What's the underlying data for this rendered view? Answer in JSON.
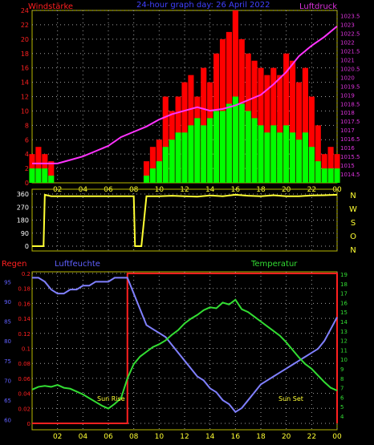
{
  "colors": {
    "background": "#000000",
    "frame": "#b8b800",
    "grid": "#a0a0a0",
    "wind_gust": "#ff0000",
    "wind_avg": "#00ff00",
    "pressure": "#ff33ff",
    "direction": "#ffff33",
    "humidity": "#8080ff",
    "temperature": "#33dd33",
    "rain": "#ff2020",
    "red_label": "#ff2020",
    "blue_label": "#6060ff",
    "green_label": "#33dd33",
    "magenta_label": "#dd33dd",
    "yellow_label": "#ffff33"
  },
  "chart_data": [
    {
      "id": "wind_pressure",
      "type": "bar",
      "title": "24-hour graph day: 26 April 2022",
      "ylabel_left": "Windstärke",
      "ylabel_right": "Luftdruck",
      "x_ticks": [
        "02",
        "04",
        "06",
        "08",
        "10",
        "12",
        "14",
        "16",
        "18",
        "20",
        "22",
        "00"
      ],
      "y_left_ticks": [
        "0",
        "2",
        "4",
        "6",
        "8",
        "10",
        "12",
        "14",
        "16",
        "18",
        "20",
        "22",
        "24"
      ],
      "y_left_range": [
        0,
        24
      ],
      "y_right_ticks": [
        "1014.5",
        "1015",
        "1015.5",
        "1016",
        "1016.5",
        "1017",
        "1017.5",
        "1018",
        "1018.5",
        "1019",
        "1019.5",
        "1020",
        "1020.5",
        "1021",
        "1021.5",
        "1022",
        "1022.5",
        "1023",
        "1023.5"
      ],
      "y_right_range": [
        1014,
        1023.8
      ],
      "x_range_hours": [
        0,
        24
      ],
      "grid": true,
      "series": [
        {
          "name": "gust",
          "x": [
            0,
            0.5,
            1,
            1.5,
            2,
            2.5,
            3,
            3.5,
            4,
            4.5,
            5,
            5.5,
            6,
            6.5,
            7,
            7.5,
            8,
            8.5,
            9,
            9.5,
            10,
            10.5,
            11,
            11.5,
            12,
            12.5,
            13,
            13.5,
            14,
            14.5,
            15,
            15.5,
            16,
            16.5,
            17,
            17.5,
            18,
            18.5,
            19,
            19.5,
            20,
            20.5,
            21,
            21.5,
            22,
            22.5,
            23,
            23.5,
            24
          ],
          "values": [
            4,
            5,
            4,
            3,
            0,
            0,
            0,
            0,
            0,
            0,
            0,
            0,
            0,
            0,
            0,
            0,
            0,
            0,
            3,
            5,
            6,
            12,
            10,
            12,
            14,
            15,
            12,
            16,
            14,
            18,
            20,
            21,
            24,
            20,
            18,
            17,
            16,
            15,
            16,
            15,
            18,
            17,
            14,
            16,
            12,
            8,
            4,
            5,
            4
          ]
        },
        {
          "name": "average",
          "x": [
            0,
            0.5,
            1,
            1.5,
            2,
            2.5,
            3,
            3.5,
            4,
            4.5,
            5,
            5.5,
            6,
            6.5,
            7,
            7.5,
            8,
            8.5,
            9,
            9.5,
            10,
            10.5,
            11,
            11.5,
            12,
            12.5,
            13,
            13.5,
            14,
            14.5,
            15,
            15.5,
            16,
            16.5,
            17,
            17.5,
            18,
            18.5,
            19,
            19.5,
            20,
            20.5,
            21,
            21.5,
            22,
            22.5,
            23,
            23.5,
            24
          ],
          "values": [
            2,
            2,
            2,
            1,
            0,
            0,
            0,
            0,
            0,
            0,
            0,
            0,
            0,
            0,
            0,
            0,
            0,
            0,
            1,
            2,
            3,
            5,
            6,
            7,
            7,
            8,
            9,
            8,
            9,
            10,
            10,
            11,
            12,
            11,
            10,
            9,
            8,
            7,
            8,
            7,
            8,
            7,
            6,
            7,
            5,
            3,
            2,
            2,
            2
          ]
        },
        {
          "name": "pressure",
          "x": [
            0,
            1,
            2,
            3,
            4,
            5,
            6,
            7,
            8,
            9,
            10,
            11,
            12,
            13,
            14,
            15,
            16,
            17,
            18,
            19,
            20,
            21,
            22,
            23,
            24
          ],
          "values": [
            1015.1,
            1015.1,
            1015.1,
            1015.3,
            1015.5,
            1015.8,
            1016.1,
            1016.6,
            1016.9,
            1017.2,
            1017.6,
            1017.9,
            1018.1,
            1018.3,
            1018.1,
            1018.2,
            1018.4,
            1018.7,
            1019.0,
            1019.6,
            1020.3,
            1021.2,
            1021.8,
            1022.3,
            1022.9
          ]
        }
      ]
    },
    {
      "id": "wind_direction",
      "type": "line",
      "y_ticks": [
        "0",
        "90",
        "180",
        "270",
        "360"
      ],
      "y_range": [
        0,
        360
      ],
      "compass_labels": [
        "N",
        "W",
        "S",
        "O",
        "N"
      ],
      "x_range_hours": [
        0,
        24
      ],
      "series": [
        {
          "name": "direction",
          "x": [
            0,
            0.3,
            0.6,
            0.9,
            1.0,
            1.5,
            2,
            3,
            4,
            5,
            6,
            7,
            7.5,
            8.0,
            8.1,
            8.5,
            8.6,
            9.0,
            10,
            11,
            12,
            13,
            14,
            15,
            16,
            17,
            18,
            19,
            20,
            21,
            22,
            23,
            24
          ],
          "values": [
            0,
            0,
            0,
            0,
            355,
            345,
            345,
            345,
            345,
            345,
            345,
            345,
            345,
            345,
            0,
            0,
            0,
            345,
            345,
            348,
            345,
            342,
            350,
            345,
            355,
            348,
            345,
            352,
            345,
            345,
            350,
            352,
            355
          ]
        }
      ]
    },
    {
      "id": "humidity_temperature",
      "type": "line",
      "label_rain": "Regen",
      "label_humidity": "Luftfeuchte",
      "label_temperature": "Temperatur",
      "annotations": [
        "Sun Rise",
        "Sun Set"
      ],
      "x_ticks": [
        "02",
        "04",
        "06",
        "08",
        "10",
        "12",
        "14",
        "16",
        "18",
        "20",
        "22",
        "00"
      ],
      "rain_ticks": [
        "0",
        "0.02",
        "0.04",
        "0.06",
        "0.08",
        "0.1",
        "0.12",
        "0.14",
        "0.16",
        "0.18",
        "0.2"
      ],
      "rain_range": [
        0,
        0.2
      ],
      "humidity_ticks": [
        "60",
        "65",
        "70",
        "75",
        "80",
        "85",
        "90",
        "95"
      ],
      "humidity_range": [
        57.5,
        97.5
      ],
      "temperature_ticks": [
        "4",
        "5",
        "6",
        "7",
        "8",
        "9",
        "10",
        "11",
        "12",
        "13",
        "14",
        "15",
        "16",
        "17",
        "18",
        "19"
      ],
      "temperature_range": [
        4,
        19
      ],
      "x_range_hours": [
        0,
        24
      ],
      "grid": true,
      "series": [
        {
          "name": "humidity",
          "x": [
            0,
            0.5,
            1,
            1.5,
            2,
            2.5,
            3,
            3.5,
            4,
            4.5,
            5,
            5.5,
            6,
            6.5,
            7,
            7.5,
            8,
            8.5,
            9,
            9.5,
            10,
            10.5,
            11,
            11.5,
            12,
            12.5,
            13,
            13.5,
            14,
            14.5,
            15,
            15.5,
            16,
            16.5,
            17,
            17.5,
            18,
            18.5,
            19,
            19.5,
            20,
            20.5,
            21,
            21.5,
            22,
            22.5,
            23,
            23.5,
            24
          ],
          "values": [
            96,
            96,
            95,
            93,
            92,
            92,
            93,
            93,
            94,
            94,
            95,
            95,
            95,
            96,
            96,
            96,
            92,
            88,
            84,
            83,
            82,
            81,
            79,
            77,
            75,
            73,
            71,
            70,
            68,
            67,
            65,
            64,
            62,
            63,
            65,
            67,
            69,
            70,
            71,
            72,
            73,
            74,
            75,
            76,
            77,
            78,
            80,
            83,
            86
          ]
        },
        {
          "name": "temperature",
          "x": [
            0,
            0.5,
            1,
            1.5,
            2,
            2.5,
            3,
            3.5,
            4,
            4.5,
            5,
            5.5,
            6,
            6.5,
            7,
            7.5,
            8,
            8.5,
            9,
            9.5,
            10,
            10.5,
            11,
            11.5,
            12,
            12.5,
            13,
            13.5,
            14,
            14.5,
            15,
            15.5,
            16,
            16.5,
            17,
            17.5,
            18,
            18.5,
            19,
            19.5,
            20,
            20.5,
            21,
            21.5,
            22,
            22.5,
            23,
            23.5,
            24
          ],
          "values": [
            6.8,
            7.1,
            7.2,
            7.1,
            7.3,
            7.0,
            6.9,
            6.6,
            6.3,
            5.9,
            5.5,
            5.1,
            4.8,
            5.3,
            5.9,
            8.0,
            9.5,
            10.3,
            10.8,
            11.3,
            11.6,
            12.0,
            12.6,
            13.1,
            13.8,
            14.3,
            14.7,
            15.2,
            15.5,
            15.4,
            16.0,
            15.8,
            16.3,
            15.3,
            15.0,
            14.5,
            14.0,
            13.5,
            13.0,
            12.5,
            11.8,
            11.0,
            10.2,
            9.5,
            9.0,
            8.3,
            7.6,
            7.0,
            6.7
          ]
        },
        {
          "name": "rain",
          "x": [
            0,
            7.5,
            7.5,
            24,
            24
          ],
          "values": [
            0,
            0,
            0.2,
            0.2,
            0
          ]
        }
      ]
    }
  ]
}
